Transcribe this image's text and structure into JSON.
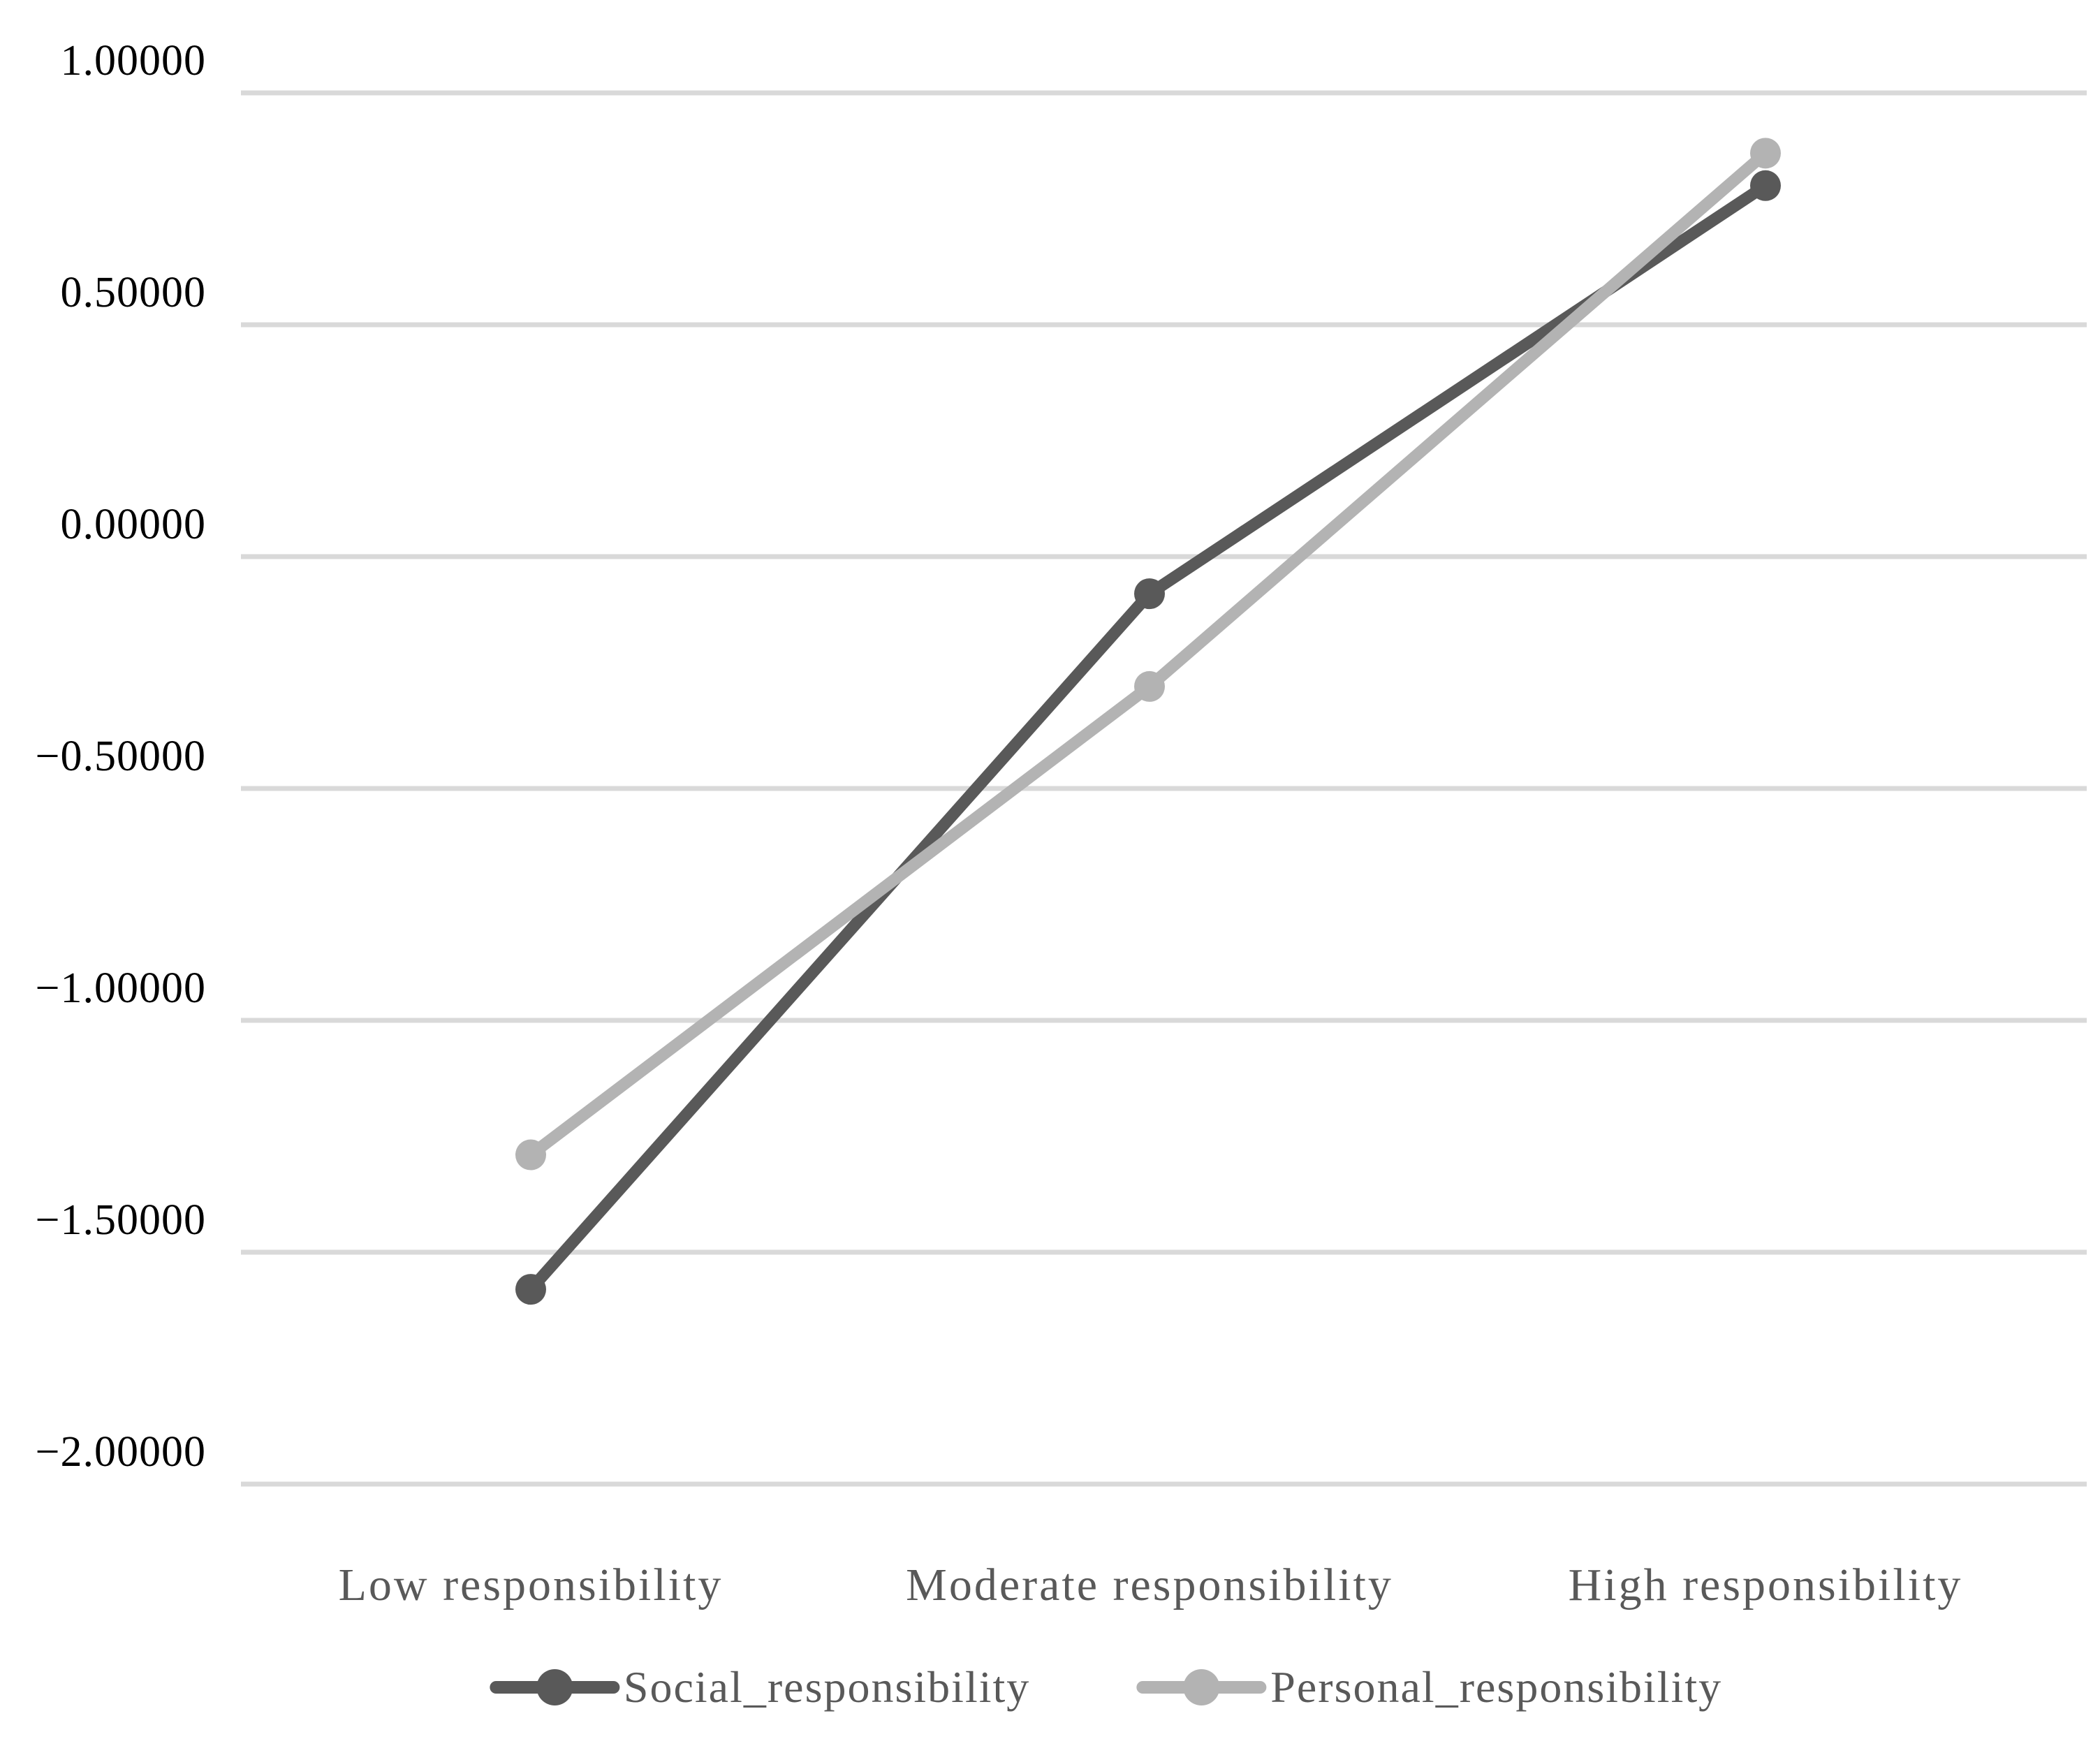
{
  "chart_data": {
    "type": "line",
    "title": "",
    "categories": [
      "Low responsibility",
      "Moderate responsibility",
      "High responsibility"
    ],
    "series": [
      {
        "name": "Social_responsibility",
        "color": "#595959",
        "marker": "circle",
        "values": [
          -1.58,
          -0.08,
          0.8
        ]
      },
      {
        "name": "Personal_responsibility",
        "color": "#b3b3b3",
        "marker": "circle",
        "values": [
          -1.29,
          -0.28,
          0.87
        ]
      }
    ],
    "y_axis": {
      "tick_labels": [
        "1.00000",
        "0.50000",
        "0.00000",
        "−0.50000",
        "−1.00000",
        "−1.50000",
        "−2.00000"
      ],
      "tick_values": [
        1,
        0.5,
        0,
        -0.5,
        -1,
        -1.5,
        -2
      ],
      "min": -2,
      "max": 1,
      "label_color": "#000000"
    },
    "x_axis": {
      "label_color": "#595959"
    },
    "grid": "horizontal",
    "gridline_color": "#d9d9d9",
    "background": "#ffffff",
    "legend": {
      "position": "bottom",
      "text_color": "#595959"
    }
  }
}
